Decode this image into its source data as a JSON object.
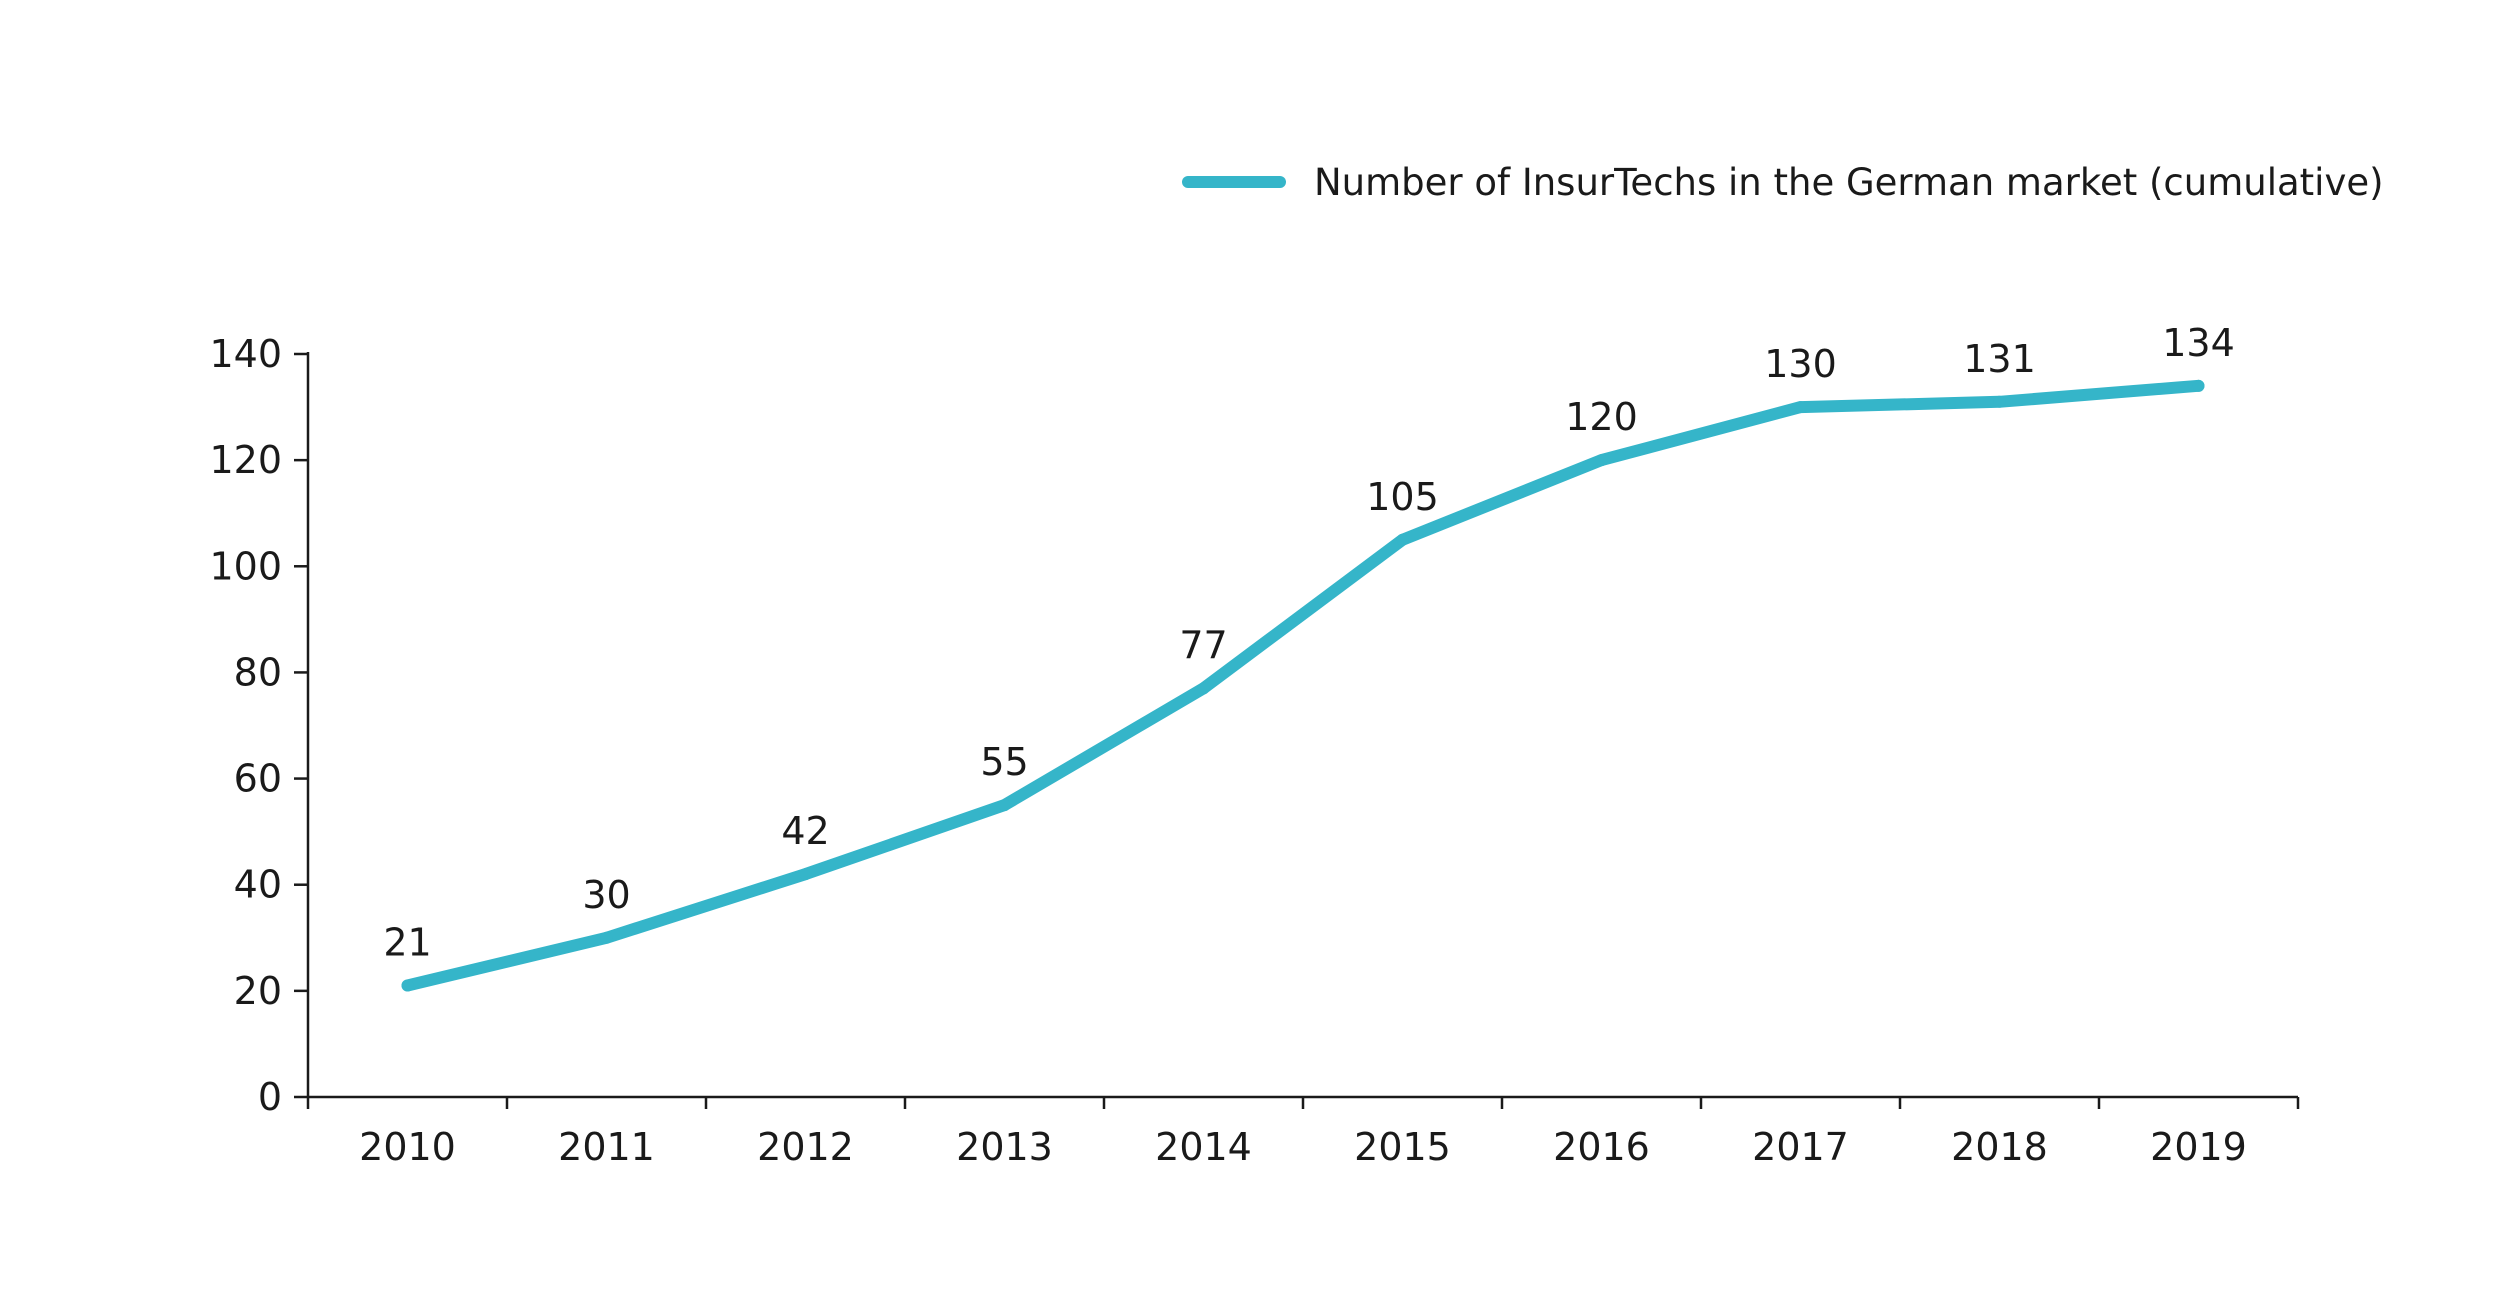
{
  "colors": {
    "series_line": "#35b5c9",
    "axis": "#1a1a1a",
    "background": "#ffffff"
  },
  "legend": {
    "position": "top-right"
  },
  "chart_data": {
    "type": "line",
    "title": "",
    "xlabel": "",
    "ylabel": "",
    "categories": [
      "2010",
      "2011",
      "2012",
      "2013",
      "2014",
      "2015",
      "2016",
      "2017",
      "2018",
      "2019"
    ],
    "series": [
      {
        "name": "Number of InsurTechs in the German market (cumulative)",
        "values": [
          21,
          30,
          42,
          55,
          77,
          105,
          120,
          130,
          131,
          134
        ],
        "data_labels": [
          "21",
          "30",
          "42",
          "55",
          "77",
          "105",
          "120",
          "130",
          "131",
          "134"
        ]
      }
    ],
    "ylim": [
      0,
      140
    ],
    "yticks": [
      0,
      20,
      40,
      60,
      80,
      100,
      120,
      140
    ],
    "ytick_labels": [
      "0",
      "20",
      "40",
      "60",
      "80",
      "100",
      "120",
      "140"
    ],
    "grid": false,
    "legend_position": "top-right"
  }
}
